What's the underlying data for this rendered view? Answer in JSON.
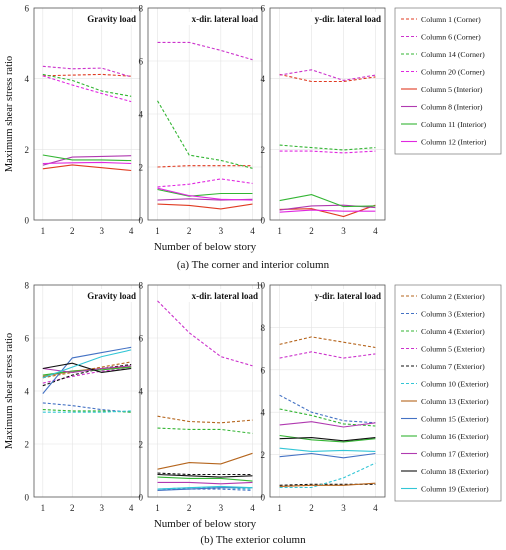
{
  "figure": {
    "caption_a": "(a) The corner and interior column",
    "caption_b": "(b) The exterior column"
  },
  "chart_data": [
    {
      "type": "line",
      "panel": "a1",
      "title": "Gravity load",
      "ylabel": "Maximum shear stress ratio",
      "xlabel": "",
      "x": [
        1,
        2,
        3,
        4
      ],
      "xlim": [
        0.7,
        4.3
      ],
      "ylim": [
        0,
        6
      ],
      "yticks": [
        0,
        2,
        4,
        6
      ],
      "series": [
        {
          "name": "Column 1 (Corner)",
          "color": "#e03b22",
          "dash": true,
          "values": [
            4.08,
            4.1,
            4.12,
            4.07
          ]
        },
        {
          "name": "Column 6 (Corner)",
          "color": "#cc33cc",
          "dash": true,
          "values": [
            4.35,
            4.28,
            4.3,
            4.05
          ]
        },
        {
          "name": "Column 14 (Corner)",
          "color": "#33b533",
          "dash": true,
          "values": [
            4.12,
            3.95,
            3.65,
            3.5
          ]
        },
        {
          "name": "Column 20 (Corner)",
          "color": "#e028e0",
          "dash": true,
          "values": [
            4.08,
            3.82,
            3.58,
            3.35
          ]
        },
        {
          "name": "Column 5 (Interior)",
          "color": "#e03b22",
          "dash": false,
          "values": [
            1.45,
            1.56,
            1.48,
            1.4
          ]
        },
        {
          "name": "Column 8 (Interior)",
          "color": "#b03ab0",
          "dash": false,
          "values": [
            1.55,
            1.78,
            1.8,
            1.82
          ]
        },
        {
          "name": "Column 11 (Interior)",
          "color": "#33b533",
          "dash": false,
          "values": [
            1.84,
            1.7,
            1.7,
            1.68
          ]
        },
        {
          "name": "Column 12 (Interior)",
          "color": "#e028e0",
          "dash": false,
          "values": [
            1.6,
            1.62,
            1.63,
            1.6
          ]
        }
      ]
    },
    {
      "type": "line",
      "panel": "a2",
      "title": "x-dir. lateral load",
      "xlabel": "Number of below story",
      "x": [
        1,
        2,
        3,
        4
      ],
      "xlim": [
        0.7,
        4.3
      ],
      "ylim": [
        0,
        8
      ],
      "yticks": [
        0,
        2,
        4,
        6,
        8
      ],
      "series": [
        {
          "name": "Column 1 (Corner)",
          "color": "#e03b22",
          "dash": true,
          "values": [
            2.0,
            2.05,
            2.05,
            2.05
          ]
        },
        {
          "name": "Column 6 (Corner)",
          "color": "#cc33cc",
          "dash": true,
          "values": [
            6.7,
            6.7,
            6.4,
            6.05
          ]
        },
        {
          "name": "Column 14 (Corner)",
          "color": "#33b533",
          "dash": true,
          "values": [
            4.5,
            2.45,
            2.25,
            1.95
          ]
        },
        {
          "name": "Column 20 (Corner)",
          "color": "#e028e0",
          "dash": true,
          "values": [
            1.25,
            1.35,
            1.55,
            1.38
          ]
        },
        {
          "name": "Column 5 (Interior)",
          "color": "#e03b22",
          "dash": false,
          "values": [
            0.6,
            0.55,
            0.42,
            0.6
          ]
        },
        {
          "name": "Column 8 (Interior)",
          "color": "#b03ab0",
          "dash": false,
          "values": [
            0.75,
            0.8,
            0.75,
            0.78
          ]
        },
        {
          "name": "Column 11 (Interior)",
          "color": "#33b533",
          "dash": false,
          "values": [
            1.15,
            0.9,
            1.0,
            1.0
          ]
        },
        {
          "name": "Column 12 (Interior)",
          "color": "#e028e0",
          "dash": false,
          "values": [
            1.2,
            0.92,
            0.78,
            0.75
          ]
        }
      ]
    },
    {
      "type": "line",
      "panel": "a3",
      "title": "y-dir. lateral load",
      "x": [
        1,
        2,
        3,
        4
      ],
      "xlim": [
        0.7,
        4.3
      ],
      "ylim": [
        0,
        6
      ],
      "yticks": [
        0,
        2,
        4,
        6
      ],
      "series": [
        {
          "name": "Column 1 (Corner)",
          "color": "#e03b22",
          "dash": true,
          "values": [
            4.12,
            3.92,
            3.92,
            4.05
          ]
        },
        {
          "name": "Column 6 (Corner)",
          "color": "#cc33cc",
          "dash": true,
          "values": [
            4.1,
            4.25,
            3.95,
            4.1
          ]
        },
        {
          "name": "Column 14 (Corner)",
          "color": "#33b533",
          "dash": true,
          "values": [
            2.12,
            2.05,
            1.98,
            2.05
          ]
        },
        {
          "name": "Column 20 (Corner)",
          "color": "#e028e0",
          "dash": true,
          "values": [
            1.95,
            1.95,
            1.9,
            1.95
          ]
        },
        {
          "name": "Column 5 (Interior)",
          "color": "#e03b22",
          "dash": false,
          "values": [
            0.3,
            0.32,
            0.1,
            0.42
          ]
        },
        {
          "name": "Column 8 (Interior)",
          "color": "#b03ab0",
          "dash": false,
          "values": [
            0.28,
            0.4,
            0.42,
            0.35
          ]
        },
        {
          "name": "Column 11 (Interior)",
          "color": "#33b533",
          "dash": false,
          "values": [
            0.55,
            0.72,
            0.38,
            0.4
          ]
        },
        {
          "name": "Column 12 (Interior)",
          "color": "#e028e0",
          "dash": false,
          "values": [
            0.22,
            0.28,
            0.25,
            0.25
          ]
        }
      ],
      "legend": "right"
    },
    {
      "type": "line",
      "panel": "b1",
      "title": "Gravity load",
      "ylabel": "Maximum shear stress ratio",
      "x": [
        1,
        2,
        3,
        4
      ],
      "xlim": [
        0.7,
        4.3
      ],
      "ylim": [
        0,
        8
      ],
      "yticks": [
        0,
        2,
        4,
        6,
        8
      ],
      "series": [
        {
          "name": "Column 2 (Exterior)",
          "color": "#b5651d",
          "dash": true,
          "values": [
            4.5,
            4.7,
            4.9,
            5.1
          ]
        },
        {
          "name": "Column 3 (Exterior)",
          "color": "#4472c4",
          "dash": true,
          "values": [
            3.55,
            3.45,
            3.3,
            3.2
          ]
        },
        {
          "name": "Column 4 (Exterior)",
          "color": "#33b533",
          "dash": true,
          "values": [
            3.3,
            3.25,
            3.25,
            3.2
          ]
        },
        {
          "name": "Column 5 (Exterior)",
          "color": "#cc33cc",
          "dash": true,
          "values": [
            4.3,
            4.55,
            4.75,
            4.85
          ]
        },
        {
          "name": "Column 7 (Exterior)",
          "color": "#111111",
          "dash": true,
          "values": [
            4.2,
            4.6,
            4.85,
            5.0
          ]
        },
        {
          "name": "Column 10 (Exterior)",
          "color": "#33c6d6",
          "dash": true,
          "values": [
            3.2,
            3.2,
            3.2,
            3.25
          ]
        },
        {
          "name": "Column 13 (Exterior)",
          "color": "#b5651d",
          "dash": false,
          "values": [
            4.55,
            4.75,
            4.85,
            4.9
          ]
        },
        {
          "name": "Column 15 (Exterior)",
          "color": "#4472c4",
          "dash": false,
          "values": [
            3.9,
            5.25,
            5.45,
            5.65
          ]
        },
        {
          "name": "Column 16 (Exterior)",
          "color": "#33b533",
          "dash": false,
          "values": [
            4.6,
            4.75,
            4.8,
            4.9
          ]
        },
        {
          "name": "Column 17 (Exterior)",
          "color": "#b03ab0",
          "dash": false,
          "values": [
            4.85,
            4.7,
            4.85,
            4.95
          ]
        },
        {
          "name": "Column 18 (Exterior)",
          "color": "#111111",
          "dash": false,
          "values": [
            4.85,
            5.05,
            4.7,
            4.85
          ]
        },
        {
          "name": "Column 19 (Exterior)",
          "color": "#33c6d6",
          "dash": false,
          "values": [
            4.5,
            4.9,
            5.3,
            5.55
          ]
        }
      ]
    },
    {
      "type": "line",
      "panel": "b2",
      "title": "x-dir. lateral load",
      "xlabel": "Number of below story",
      "x": [
        1,
        2,
        3,
        4
      ],
      "xlim": [
        0.7,
        4.3
      ],
      "ylim": [
        0,
        8
      ],
      "yticks": [
        0,
        2,
        4,
        6,
        8
      ],
      "series": [
        {
          "name": "Column 2 (Exterior)",
          "color": "#b5651d",
          "dash": true,
          "values": [
            3.05,
            2.85,
            2.8,
            2.9
          ]
        },
        {
          "name": "Column 3 (Exterior)",
          "color": "#4472c4",
          "dash": true,
          "values": [
            0.3,
            0.3,
            0.3,
            0.25
          ]
        },
        {
          "name": "Column 4 (Exterior)",
          "color": "#33b533",
          "dash": true,
          "values": [
            2.6,
            2.55,
            2.55,
            2.4
          ]
        },
        {
          "name": "Column 5 (Exterior)",
          "color": "#cc33cc",
          "dash": true,
          "values": [
            7.4,
            6.2,
            5.3,
            4.95
          ]
        },
        {
          "name": "Column 7 (Exterior)",
          "color": "#111111",
          "dash": true,
          "values": [
            0.9,
            0.85,
            0.85,
            0.85
          ]
        },
        {
          "name": "Column 10 (Exterior)",
          "color": "#33c6d6",
          "dash": true,
          "values": [
            0.3,
            0.35,
            0.35,
            0.3
          ]
        },
        {
          "name": "Column 13 (Exterior)",
          "color": "#b5651d",
          "dash": false,
          "values": [
            1.05,
            1.3,
            1.25,
            1.65
          ]
        },
        {
          "name": "Column 15 (Exterior)",
          "color": "#4472c4",
          "dash": false,
          "values": [
            0.25,
            0.3,
            0.35,
            0.35
          ]
        },
        {
          "name": "Column 16 (Exterior)",
          "color": "#33b533",
          "dash": false,
          "values": [
            0.75,
            0.7,
            0.7,
            0.6
          ]
        },
        {
          "name": "Column 17 (Exterior)",
          "color": "#b03ab0",
          "dash": false,
          "values": [
            0.55,
            0.55,
            0.5,
            0.55
          ]
        },
        {
          "name": "Column 18 (Exterior)",
          "color": "#111111",
          "dash": false,
          "values": [
            0.85,
            0.8,
            0.75,
            0.8
          ]
        },
        {
          "name": "Column 19 (Exterior)",
          "color": "#33c6d6",
          "dash": false,
          "values": [
            0.3,
            0.35,
            0.4,
            0.35
          ]
        }
      ]
    },
    {
      "type": "line",
      "panel": "b3",
      "title": "y-dir. lateral load",
      "x": [
        1,
        2,
        3,
        4
      ],
      "xlim": [
        0.7,
        4.3
      ],
      "ylim": [
        0,
        10
      ],
      "yticks": [
        0,
        2,
        4,
        6,
        8,
        10
      ],
      "series": [
        {
          "name": "Column 2 (Exterior)",
          "color": "#b5651d",
          "dash": true,
          "values": [
            7.2,
            7.55,
            7.3,
            7.05
          ]
        },
        {
          "name": "Column 3 (Exterior)",
          "color": "#4472c4",
          "dash": true,
          "values": [
            4.8,
            4.0,
            3.6,
            3.5
          ]
        },
        {
          "name": "Column 4 (Exterior)",
          "color": "#33b533",
          "dash": true,
          "values": [
            4.15,
            3.85,
            3.45,
            3.35
          ]
        },
        {
          "name": "Column 5 (Exterior)",
          "color": "#cc33cc",
          "dash": true,
          "values": [
            6.55,
            6.85,
            6.55,
            6.75
          ]
        },
        {
          "name": "Column 7 (Exterior)",
          "color": "#111111",
          "dash": true,
          "values": [
            0.55,
            0.6,
            0.6,
            0.6
          ]
        },
        {
          "name": "Column 10 (Exterior)",
          "color": "#33c6d6",
          "dash": true,
          "values": [
            0.45,
            0.45,
            0.9,
            1.6
          ]
        },
        {
          "name": "Column 13 (Exterior)",
          "color": "#b5651d",
          "dash": false,
          "values": [
            0.5,
            0.55,
            0.55,
            0.65
          ]
        },
        {
          "name": "Column 15 (Exterior)",
          "color": "#4472c4",
          "dash": false,
          "values": [
            1.9,
            2.05,
            1.85,
            2.05
          ]
        },
        {
          "name": "Column 16 (Exterior)",
          "color": "#33b533",
          "dash": false,
          "values": [
            2.9,
            2.7,
            2.6,
            2.75
          ]
        },
        {
          "name": "Column 17 (Exterior)",
          "color": "#b03ab0",
          "dash": false,
          "values": [
            3.4,
            3.55,
            3.3,
            3.5
          ]
        },
        {
          "name": "Column 18 (Exterior)",
          "color": "#111111",
          "dash": false,
          "values": [
            2.75,
            2.8,
            2.65,
            2.8
          ]
        },
        {
          "name": "Column 19 (Exterior)",
          "color": "#33c6d6",
          "dash": false,
          "values": [
            2.3,
            2.15,
            2.2,
            2.15
          ]
        }
      ],
      "legend": "right"
    }
  ]
}
